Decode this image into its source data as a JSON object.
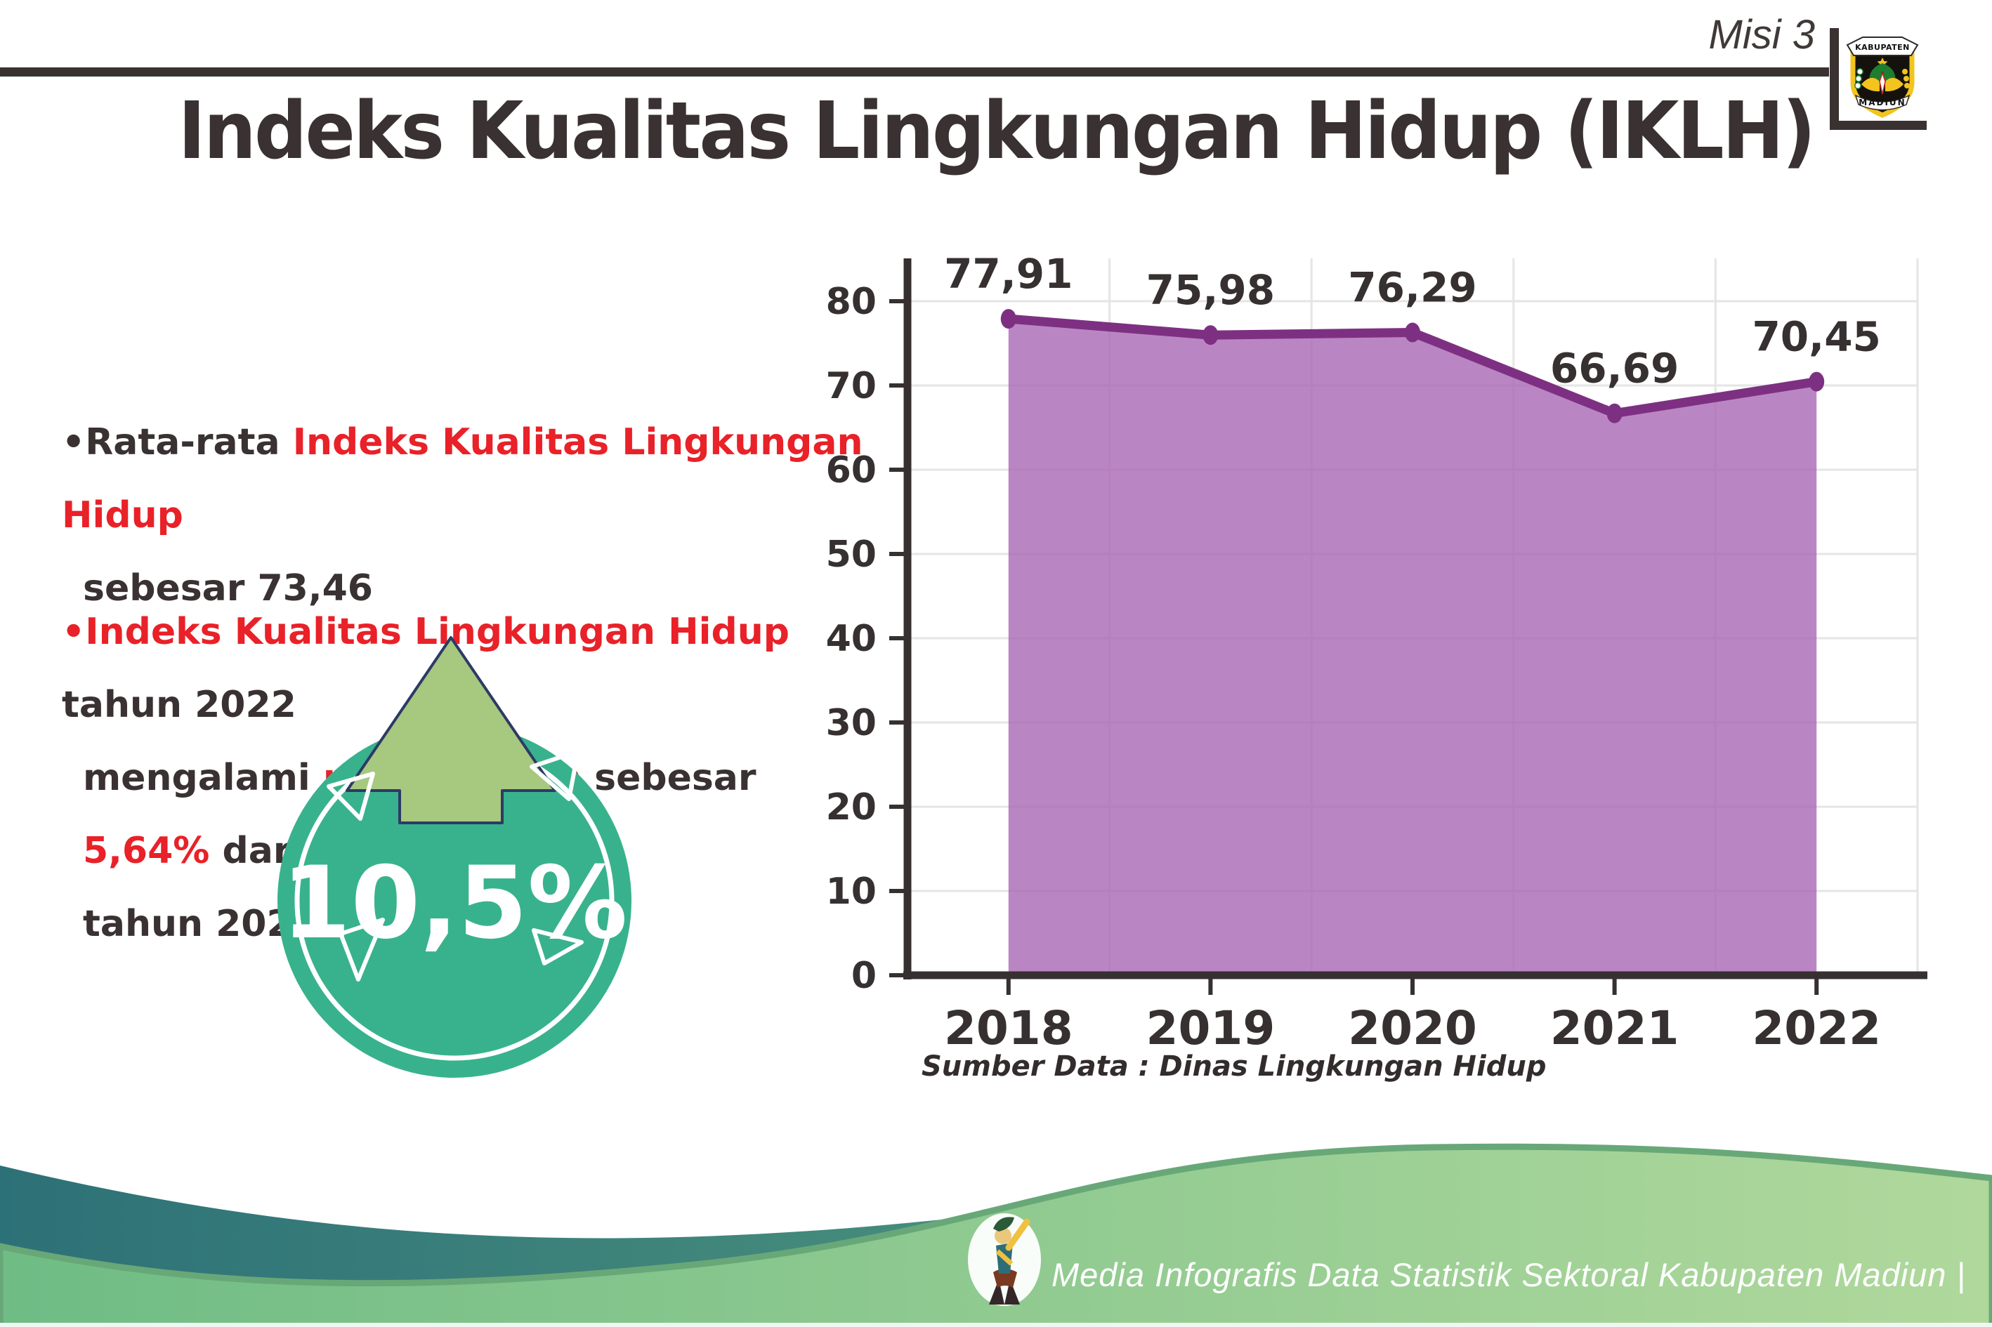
{
  "header": {
    "misi_label": "Misi 3",
    "title": "Indeks Kualitas Lingkungan Hidup (IKLH)"
  },
  "logo": {
    "kabupaten": "KABUPATEN",
    "madiun": "MADIUN"
  },
  "bullets": {
    "b1": {
      "lines": [
        [
          {
            "t": "•Rata-rata ",
            "c": "dark"
          },
          {
            "t": "Indeks Kualitas Lingkungan Hidup",
            "c": "red"
          }
        ],
        [
          {
            "t": "sebesar 73,46",
            "c": "dark"
          }
        ]
      ]
    },
    "b2": {
      "lines": [
        [
          {
            "t": "•Indeks Kualitas Lingkungan Hidup",
            "c": "red"
          },
          {
            "t": " tahun 2022",
            "c": "dark"
          }
        ],
        [
          {
            "t": "mengalami ",
            "c": "dark"
          },
          {
            "t": "peningkatan",
            "c": "red"
          },
          {
            "t": " sebesar ",
            "c": "dark"
          },
          {
            "t": "5,64%",
            "c": "red"
          },
          {
            "t": " dari",
            "c": "dark"
          }
        ],
        [
          {
            "t": "tahun 2021",
            "c": "dark"
          }
        ]
      ]
    }
  },
  "badge": {
    "value": "10,5%"
  },
  "chart_data": {
    "type": "area",
    "title": "",
    "categories": [
      "2018",
      "2019",
      "2020",
      "2021",
      "2022"
    ],
    "values": [
      77.91,
      75.98,
      76.29,
      66.69,
      70.45
    ],
    "point_labels": [
      "77,91",
      "75,98",
      "76,29",
      "66,69",
      "70,45"
    ],
    "xlabel": "",
    "ylabel": "",
    "ylim": [
      0,
      85
    ],
    "ytick_step": 10,
    "ytick_labels": [
      "0",
      "10",
      "20",
      "30",
      "40",
      "50",
      "60",
      "70",
      "80"
    ],
    "grid": true,
    "legend": false,
    "fill_color": "#a966b4",
    "line_color": "#7d3082",
    "source": "Sumber Data : Dinas Lingkungan Hidup"
  },
  "footer": {
    "credit": "Media Infografis Data Statistik Sektoral Kabupaten Madiun |"
  },
  "colors": {
    "text_dark": "#3a3132",
    "accent_red": "#e92128",
    "badge_teal": "#38b28d",
    "arrow_green": "#a6c87f",
    "arrow_outline": "#2d3a66",
    "area_fill": "#bf8ec6",
    "line_purple": "#7d3082",
    "footer_teal": "#2d7178",
    "footer_green": "#8cc98f"
  }
}
